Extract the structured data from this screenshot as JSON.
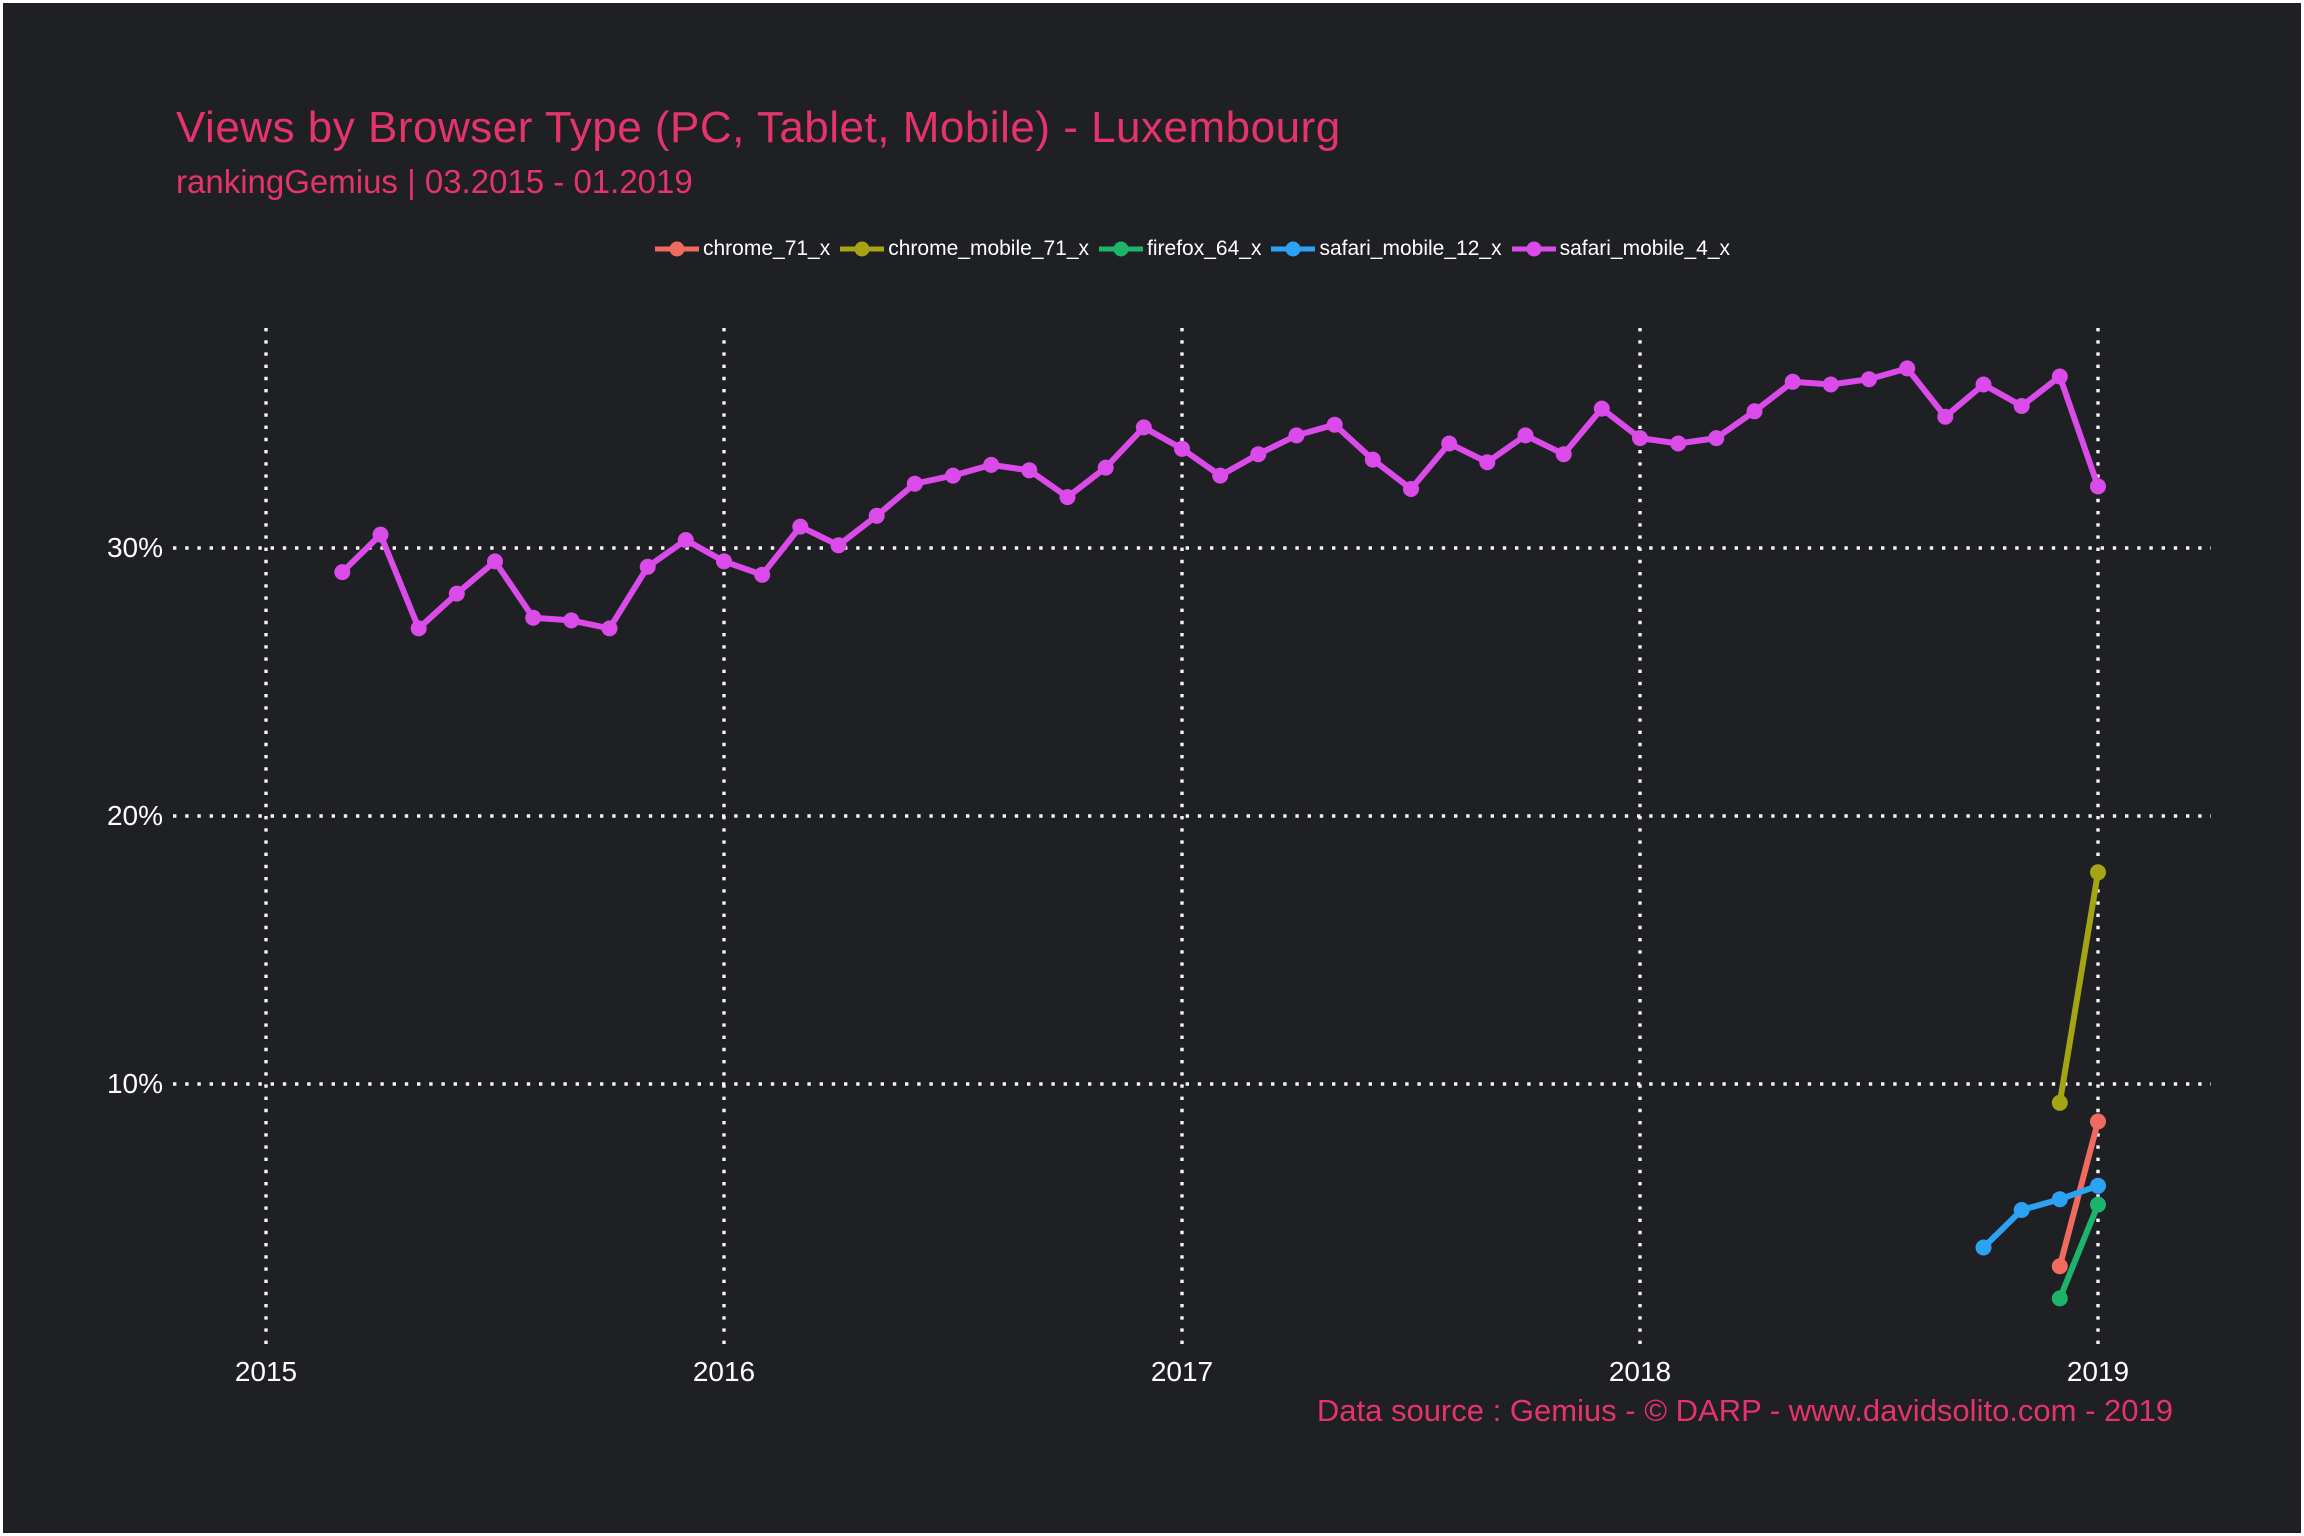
{
  "chart_data": {
    "type": "line",
    "title": "Views by Browser Type (PC, Tablet, Mobile) - Luxembourg",
    "subtitle": "rankingGemius | 03.2015 - 01.2019",
    "caption": "Data source : Gemius - © DARP - www.davidsolito.com - 2019",
    "grid": "dotted",
    "legend_position": "top-center",
    "background_color": "#1F2023",
    "accent_text_color": "#E5336B",
    "tick_text_color": "#ffffff",
    "x_axis": {
      "ticks": [
        2015,
        2016,
        2017,
        2018,
        2019
      ],
      "range": [
        "2015-03",
        "2019-01"
      ]
    },
    "y_axis": {
      "ticks": [
        {
          "value": 30,
          "label": "30%"
        },
        {
          "value": 20,
          "label": "20%"
        },
        {
          "value": 10,
          "label": "10%"
        }
      ],
      "unit": "percent"
    },
    "series": [
      {
        "name": "chrome_71_x",
        "color": "#EF6B5F",
        "points": [
          [
            "2018-12",
            3.2
          ],
          [
            "2019-01",
            8.6
          ]
        ]
      },
      {
        "name": "chrome_mobile_71_x",
        "color": "#A4A414",
        "points": [
          [
            "2018-12",
            9.3
          ],
          [
            "2019-01",
            17.9
          ]
        ]
      },
      {
        "name": "firefox_64_x",
        "color": "#1DB36B",
        "points": [
          [
            "2018-12",
            2.0
          ],
          [
            "2019-01",
            5.5
          ]
        ]
      },
      {
        "name": "safari_mobile_12_x",
        "color": "#2BA2F4",
        "points": [
          [
            "2018-10",
            3.9
          ],
          [
            "2018-11",
            5.3
          ],
          [
            "2018-12",
            5.7
          ],
          [
            "2019-01",
            6.2
          ]
        ]
      },
      {
        "name": "safari_mobile_4_x",
        "color": "#DB4BEA",
        "points": [
          [
            "2015-03",
            29.1
          ],
          [
            "2015-04",
            30.5
          ],
          [
            "2015-05",
            27.0
          ],
          [
            "2015-06",
            28.3
          ],
          [
            "2015-07",
            29.5
          ],
          [
            "2015-08",
            27.4
          ],
          [
            "2015-09",
            27.3
          ],
          [
            "2015-10",
            27.0
          ],
          [
            "2015-11",
            29.3
          ],
          [
            "2015-12",
            30.3
          ],
          [
            "2016-01",
            29.5
          ],
          [
            "2016-02",
            29.0
          ],
          [
            "2016-03",
            30.8
          ],
          [
            "2016-04",
            30.1
          ],
          [
            "2016-05",
            31.2
          ],
          [
            "2016-06",
            32.4
          ],
          [
            "2016-07",
            32.7
          ],
          [
            "2016-08",
            33.1
          ],
          [
            "2016-09",
            32.9
          ],
          [
            "2016-10",
            31.9
          ],
          [
            "2016-11",
            33.0
          ],
          [
            "2016-12",
            34.5
          ],
          [
            "2017-01",
            33.7
          ],
          [
            "2017-02",
            32.7
          ],
          [
            "2017-03",
            33.5
          ],
          [
            "2017-04",
            34.2
          ],
          [
            "2017-05",
            34.6
          ],
          [
            "2017-06",
            33.3
          ],
          [
            "2017-07",
            32.2
          ],
          [
            "2017-08",
            33.9
          ],
          [
            "2017-09",
            33.2
          ],
          [
            "2017-10",
            34.2
          ],
          [
            "2017-11",
            33.5
          ],
          [
            "2017-12",
            35.2
          ],
          [
            "2018-01",
            34.1
          ],
          [
            "2018-02",
            33.9
          ],
          [
            "2018-03",
            34.1
          ],
          [
            "2018-04",
            35.1
          ],
          [
            "2018-05",
            36.2
          ],
          [
            "2018-06",
            36.1
          ],
          [
            "2018-07",
            36.3
          ],
          [
            "2018-08",
            36.7
          ],
          [
            "2018-09",
            34.9
          ],
          [
            "2018-10",
            36.1
          ],
          [
            "2018-11",
            35.3
          ],
          [
            "2018-12",
            36.4
          ],
          [
            "2019-01",
            32.3
          ]
        ]
      }
    ]
  }
}
